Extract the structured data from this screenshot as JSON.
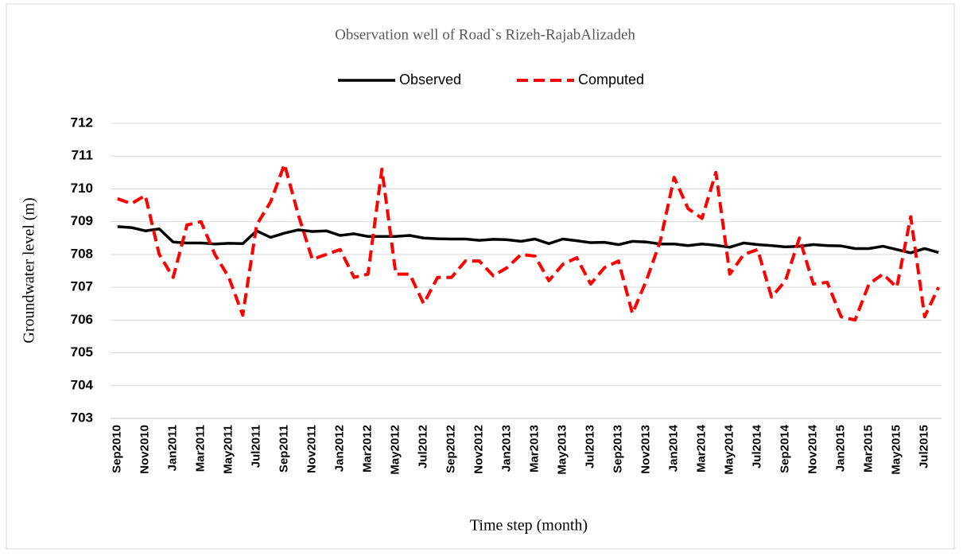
{
  "chart_data": {
    "type": "line",
    "title": "Observation well of Road`s Rizeh-RajabAlizadeh",
    "x_label": "Time step (month)",
    "y_label": "Groundwater level (m)",
    "categories": [
      "Sep2010",
      null,
      "Nov2010",
      null,
      "Jan2011",
      null,
      "Mar2011",
      null,
      "May2011",
      null,
      "Jul2011",
      null,
      "Sep2011",
      null,
      "Nov2011",
      null,
      "Jan2012",
      null,
      "Mar2012",
      null,
      "May2012",
      null,
      "Jul2012",
      null,
      "Sep2012",
      null,
      "Nov2012",
      null,
      "Jan2013",
      null,
      "Mar2013",
      null,
      "May2013",
      null,
      "Jul2013",
      null,
      "Sep2013",
      null,
      "Nov2013",
      null,
      "Jan2014",
      null,
      "Mar2014",
      null,
      "May2014",
      null,
      "Jul2014",
      null,
      "Sep2014",
      null,
      "Nov2014",
      null,
      "Jan2015",
      null,
      "Mar2015",
      null,
      "May2015",
      null,
      "Jul2015",
      null
    ],
    "series": [
      {
        "name": "Observed",
        "color": "#000000",
        "dash": false,
        "values": [
          708.85,
          708.82,
          708.72,
          708.78,
          708.38,
          708.35,
          708.35,
          708.32,
          708.34,
          708.33,
          708.72,
          708.52,
          708.65,
          708.75,
          708.7,
          708.72,
          708.58,
          708.63,
          708.55,
          708.55,
          708.55,
          708.58,
          708.5,
          708.48,
          708.47,
          708.47,
          708.43,
          708.46,
          708.45,
          708.4,
          708.47,
          708.33,
          708.47,
          708.42,
          708.36,
          708.37,
          708.3,
          708.4,
          708.38,
          708.32,
          708.32,
          708.27,
          708.32,
          708.28,
          708.22,
          708.35,
          708.3,
          708.27,
          708.23,
          708.25,
          708.3,
          708.27,
          708.26,
          708.18,
          708.18,
          708.25,
          708.15,
          708.05,
          708.18,
          708.06
        ]
      },
      {
        "name": "Computed",
        "color": "#ff0000",
        "dash": true,
        "values": [
          709.7,
          709.55,
          709.8,
          708.0,
          707.3,
          708.9,
          709.0,
          708.0,
          707.3,
          706.15,
          708.9,
          709.6,
          710.75,
          709.2,
          707.85,
          708.0,
          708.15,
          707.3,
          707.4,
          710.6,
          707.4,
          707.4,
          706.5,
          707.3,
          707.3,
          707.8,
          707.8,
          707.35,
          707.6,
          708.0,
          707.95,
          707.2,
          707.7,
          707.9,
          707.1,
          707.6,
          707.8,
          706.2,
          707.2,
          708.4,
          710.35,
          709.4,
          709.1,
          710.5,
          707.4,
          708.0,
          708.15,
          706.7,
          707.2,
          708.5,
          707.1,
          707.15,
          706.1,
          706.0,
          707.1,
          707.4,
          707.0,
          709.15,
          706.1,
          707.0
        ]
      }
    ],
    "ylim": [
      703,
      712
    ],
    "yticks": [
      703,
      704,
      705,
      706,
      707,
      708,
      709,
      710,
      711,
      712
    ],
    "grid": true,
    "legend": "top"
  }
}
